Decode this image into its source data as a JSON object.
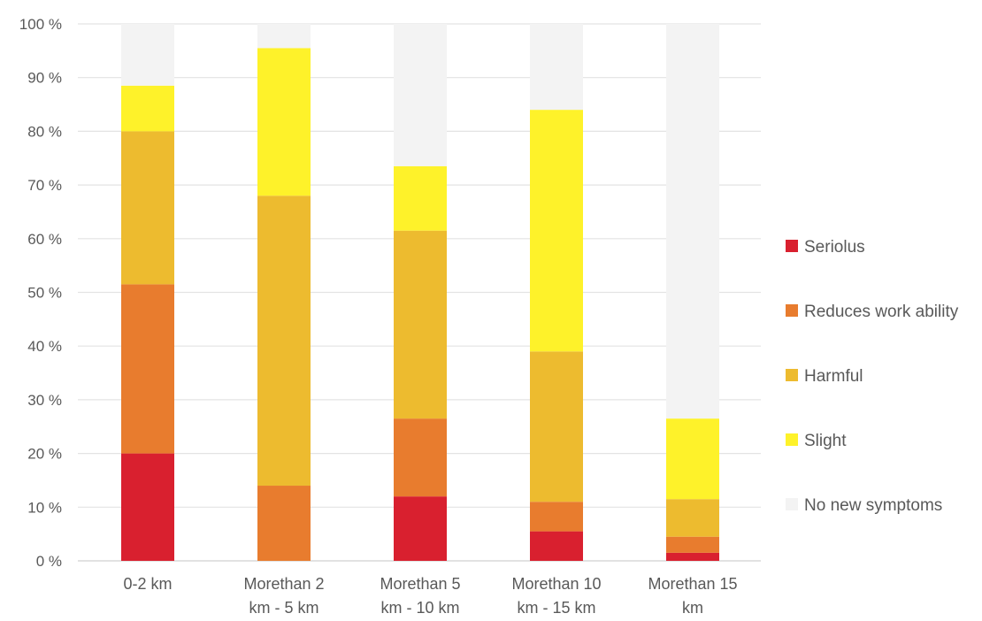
{
  "chart_data": {
    "type": "bar",
    "stacked": true,
    "title": "",
    "xlabel": "",
    "ylabel": "",
    "ylim": [
      0,
      100
    ],
    "y_ticks": [
      0,
      10,
      20,
      30,
      40,
      50,
      60,
      70,
      80,
      90,
      100
    ],
    "y_tick_labels": [
      "0 %",
      "10 %",
      "20 %",
      "30 %",
      "40 %",
      "50 %",
      "60 %",
      "70 %",
      "80 %",
      "90 %",
      "100 %"
    ],
    "grid": true,
    "legend_position": "right",
    "categories": [
      [
        "0-2 km"
      ],
      [
        "Morethan 2",
        "km - 5 km"
      ],
      [
        "Morethan 5",
        "km - 10 km"
      ],
      [
        "Morethan 10",
        "km - 15 km"
      ],
      [
        "Morethan 15",
        "km"
      ]
    ],
    "series": [
      {
        "name": "Seriolus",
        "color": "#d9202f",
        "values": [
          20,
          0,
          12,
          5.5,
          1.5
        ]
      },
      {
        "name": "Reduces work ability",
        "color": "#e87c2e",
        "values": [
          31.5,
          14,
          14.5,
          5.5,
          3
        ]
      },
      {
        "name": "Harmful",
        "color": "#edbb2f",
        "values": [
          28.5,
          54,
          35,
          28,
          7
        ]
      },
      {
        "name": "Slight",
        "color": "#fef22a",
        "values": [
          8.5,
          27.5,
          12,
          45,
          15
        ]
      },
      {
        "name": "No new symptoms",
        "color": "#f3f3f3",
        "values": [
          11.5,
          4.5,
          26.5,
          16,
          73.5
        ]
      }
    ]
  }
}
